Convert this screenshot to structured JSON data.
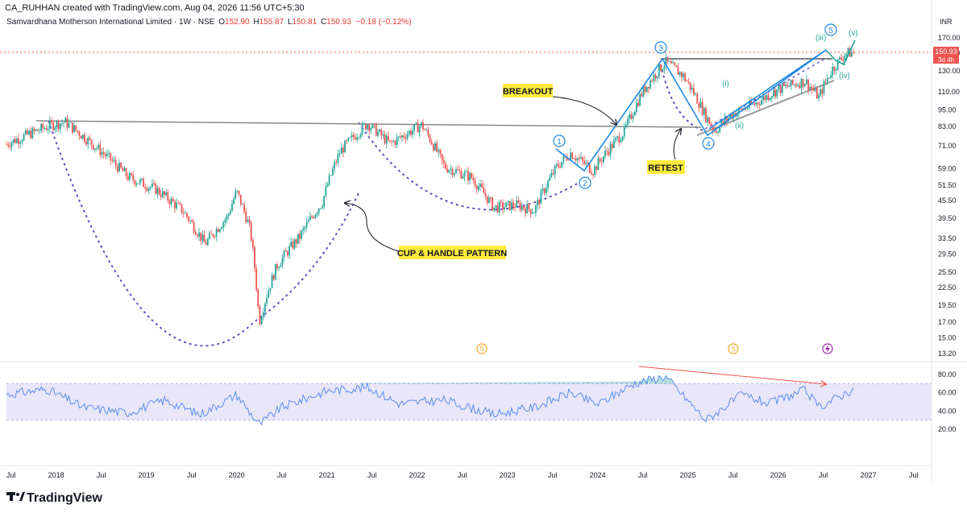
{
  "header": {
    "credit": "CA_RUHHAN created with TradingView.com, Aug 04, 2026 11:56 UTC+5:30",
    "symbol": "Samvardhana Motherson International Limited · 1W · NSE",
    "open_label": "O",
    "open": "152.90",
    "high_label": "H",
    "high": "155.87",
    "low_label": "L",
    "low": "150.81",
    "close_label": "C",
    "close": "150.93",
    "change": "−0.18 (−0.12%)"
  },
  "price_axis": {
    "currency": "INR",
    "ticks": [
      "170.00",
      "150.00",
      "130.00",
      "110.00",
      "95.00",
      "83.00",
      "71.00",
      "59.00",
      "51.50",
      "45.50",
      "39.50",
      "33.50",
      "29.50",
      "25.50",
      "22.50",
      "19.50",
      "17.00",
      "15.00",
      "13.20"
    ],
    "last_price": "150.93",
    "countdown": "3d 4h"
  },
  "rsi_axis": {
    "ticks": [
      "80.00",
      "60.00",
      "40.00",
      "20.00"
    ]
  },
  "time_axis": {
    "labels": [
      "Jul",
      "2018",
      "Jul",
      "2019",
      "Jul",
      "2020",
      "Jul",
      "2021",
      "Jul",
      "2022",
      "Jul",
      "2023",
      "Jul",
      "2024",
      "Jul",
      "2025",
      "Jul",
      "2026",
      "Jul",
      "2027",
      "Jul"
    ]
  },
  "annotations": {
    "breakout": "BREAKOUT",
    "retest": "RETEST",
    "cup_handle": "CUP & HANDLE PATTERN",
    "waves": [
      "1",
      "2",
      "3",
      "4",
      "5"
    ],
    "sub_waves": [
      "(i)",
      "(ii)",
      "(iii)",
      "(iv)",
      "(v)"
    ]
  },
  "event_markers": [
    "S",
    "S"
  ],
  "brand": "TradingView",
  "colors": {
    "up": "#26a69a",
    "down": "#ef5350",
    "rsi": "#5b8def",
    "rsi_band": "#e8e6f8",
    "pattern": "#6a4fc0",
    "wave": "#1e88e5",
    "projection": "#26a69a",
    "label_bg": "#ffeb3b",
    "price_badge": "#ef5350",
    "divergence": "#ef5350"
  },
  "chart_data": {
    "type": "candlestick",
    "title": "Samvardhana Motherson International Limited · 1W · NSE",
    "x_labels": [
      "Jul",
      "2018",
      "Jul",
      "2019",
      "Jul",
      "2020",
      "Jul",
      "2021",
      "Jul",
      "2022",
      "Jul",
      "2023",
      "Jul",
      "2024",
      "Jul",
      "2025",
      "Jul",
      "2026",
      "Jul",
      "2027",
      "Jul"
    ],
    "y_scale": "log",
    "ylim": [
      13.2,
      185
    ],
    "price_path_anchors": [
      {
        "t": 2017.45,
        "p": 72
      },
      {
        "t": 2017.95,
        "p": 84
      },
      {
        "t": 2018.1,
        "p": 86
      },
      {
        "t": 2018.4,
        "p": 72
      },
      {
        "t": 2018.8,
        "p": 55
      },
      {
        "t": 2019.1,
        "p": 50
      },
      {
        "t": 2019.4,
        "p": 42
      },
      {
        "t": 2019.65,
        "p": 32
      },
      {
        "t": 2019.9,
        "p": 40
      },
      {
        "t": 2020.0,
        "p": 49
      },
      {
        "t": 2020.15,
        "p": 36
      },
      {
        "t": 2020.25,
        "p": 17
      },
      {
        "t": 2020.45,
        "p": 27
      },
      {
        "t": 2020.7,
        "p": 34
      },
      {
        "t": 2020.95,
        "p": 45
      },
      {
        "t": 2021.15,
        "p": 68
      },
      {
        "t": 2021.45,
        "p": 85
      },
      {
        "t": 2021.7,
        "p": 72
      },
      {
        "t": 2022.05,
        "p": 84
      },
      {
        "t": 2022.3,
        "p": 60
      },
      {
        "t": 2022.6,
        "p": 55
      },
      {
        "t": 2022.85,
        "p": 43
      },
      {
        "t": 2023.1,
        "p": 44
      },
      {
        "t": 2023.3,
        "p": 42
      },
      {
        "t": 2023.55,
        "p": 60
      },
      {
        "t": 2023.7,
        "p": 67
      },
      {
        "t": 2023.95,
        "p": 58
      },
      {
        "t": 2024.3,
        "p": 80
      },
      {
        "t": 2024.5,
        "p": 110
      },
      {
        "t": 2024.75,
        "p": 140
      },
      {
        "t": 2024.95,
        "p": 125
      },
      {
        "t": 2025.2,
        "p": 90
      },
      {
        "t": 2025.3,
        "p": 80
      },
      {
        "t": 2025.5,
        "p": 92
      },
      {
        "t": 2025.75,
        "p": 100
      },
      {
        "t": 2026.0,
        "p": 112
      },
      {
        "t": 2026.3,
        "p": 120
      },
      {
        "t": 2026.45,
        "p": 105
      },
      {
        "t": 2026.6,
        "p": 132
      },
      {
        "t": 2026.75,
        "p": 150
      },
      {
        "t": 2026.85,
        "p": 151
      }
    ],
    "rsi_ylim": [
      20,
      80
    ],
    "rsi_band": [
      30,
      70
    ],
    "rsi_anchors": [
      {
        "t": 2017.45,
        "v": 58
      },
      {
        "t": 2017.9,
        "v": 64
      },
      {
        "t": 2018.3,
        "v": 44
      },
      {
        "t": 2018.8,
        "v": 38
      },
      {
        "t": 2019.2,
        "v": 52
      },
      {
        "t": 2019.6,
        "v": 36
      },
      {
        "t": 2020.0,
        "v": 58
      },
      {
        "t": 2020.25,
        "v": 25
      },
      {
        "t": 2020.5,
        "v": 44
      },
      {
        "t": 2021.0,
        "v": 62
      },
      {
        "t": 2021.45,
        "v": 66
      },
      {
        "t": 2021.8,
        "v": 48
      },
      {
        "t": 2022.3,
        "v": 52
      },
      {
        "t": 2022.85,
        "v": 36
      },
      {
        "t": 2023.3,
        "v": 44
      },
      {
        "t": 2023.7,
        "v": 60
      },
      {
        "t": 2024.0,
        "v": 47
      },
      {
        "t": 2024.4,
        "v": 70
      },
      {
        "t": 2024.75,
        "v": 78
      },
      {
        "t": 2025.2,
        "v": 30
      },
      {
        "t": 2025.6,
        "v": 58
      },
      {
        "t": 2025.9,
        "v": 48
      },
      {
        "t": 2026.3,
        "v": 63
      },
      {
        "t": 2026.45,
        "v": 44
      },
      {
        "t": 2026.85,
        "v": 65
      }
    ]
  }
}
